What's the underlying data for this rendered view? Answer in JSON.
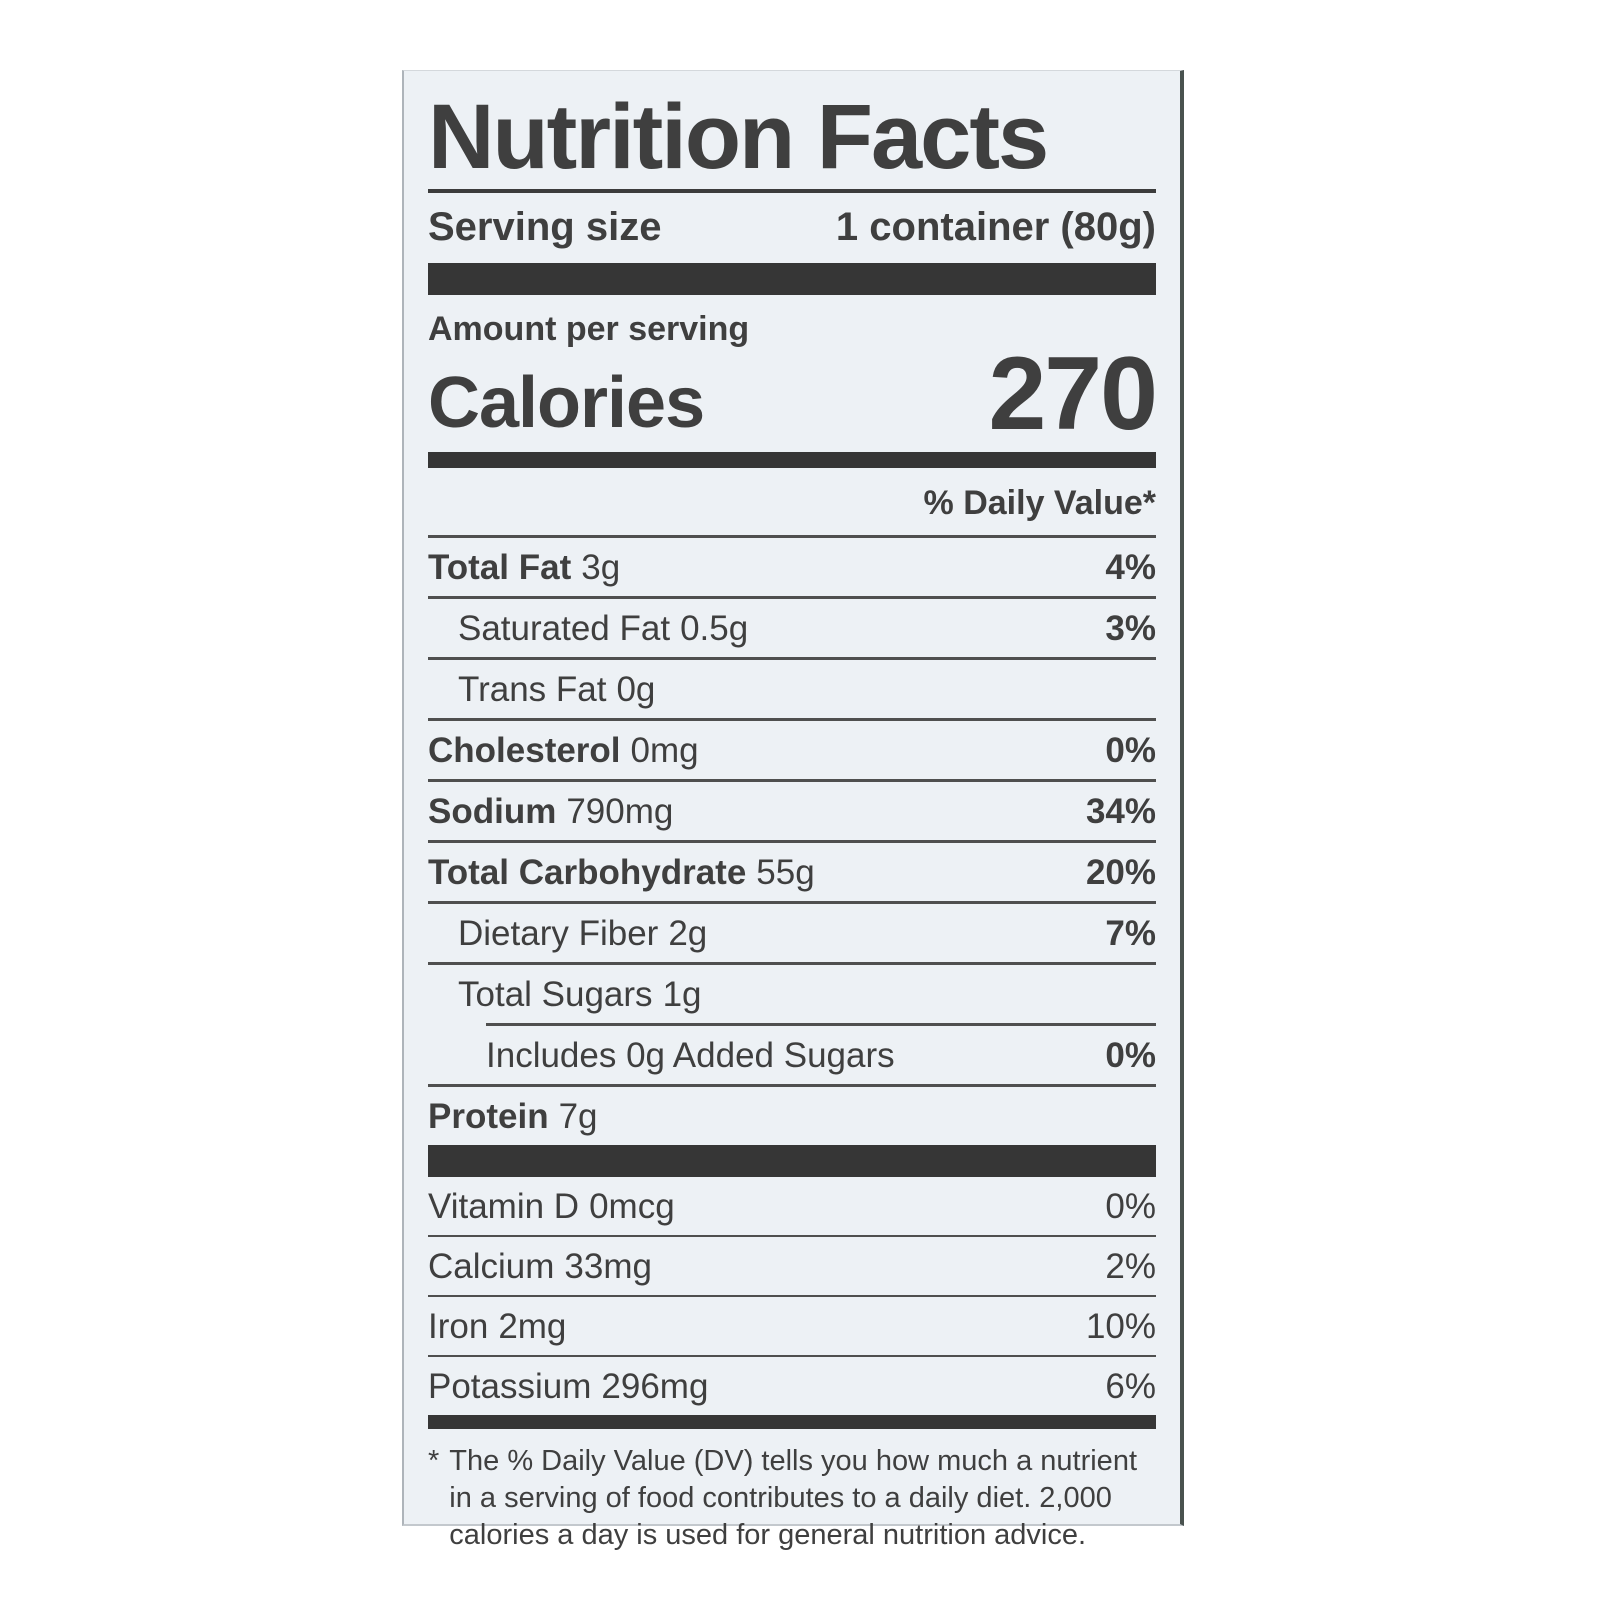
{
  "label": {
    "title": "Nutrition Facts",
    "serving_size_label": "Serving size",
    "serving_size_value": "1 container (80g)",
    "amount_per_serving": "Amount per serving",
    "calories_label": "Calories",
    "calories_value": "270",
    "daily_value_header": "% Daily Value*",
    "nutrients": [
      {
        "name": "Total Fat",
        "amount": "3g",
        "dv": "4%"
      },
      {
        "name": "Saturated Fat",
        "amount": "0.5g",
        "dv": "3%"
      },
      {
        "name": "Trans Fat",
        "amount": "0g",
        "dv": ""
      },
      {
        "name": "Cholesterol",
        "amount": "0mg",
        "dv": "0%"
      },
      {
        "name": "Sodium",
        "amount": "790mg",
        "dv": "34%"
      },
      {
        "name": "Total Carbohydrate",
        "amount": "55g",
        "dv": "20%"
      },
      {
        "name": "Dietary Fiber",
        "amount": "2g",
        "dv": "7%"
      },
      {
        "name": "Total Sugars",
        "amount": "1g",
        "dv": ""
      },
      {
        "name": "Includes 0g Added Sugars",
        "amount": "",
        "dv": "0%"
      },
      {
        "name": "Protein",
        "amount": "7g",
        "dv": ""
      }
    ],
    "micronutrients": [
      {
        "name": "Vitamin D",
        "amount": "0mcg",
        "dv": "0%"
      },
      {
        "name": "Calcium",
        "amount": "33mg",
        "dv": "2%"
      },
      {
        "name": "Iron",
        "amount": "2mg",
        "dv": "10%"
      },
      {
        "name": "Potassium",
        "amount": "296mg",
        "dv": "6%"
      }
    ],
    "footnote_marker": "*",
    "footnote": "The % Daily Value (DV) tells you how much a nutrient in a serving of food contributes to a daily diet. 2,000 calories a day is used for general nutrition advice."
  },
  "colors": {
    "label_background": "#edf1f5",
    "text": "#3f3f3f",
    "bars": "#363636",
    "page_background": "#ffffff"
  }
}
